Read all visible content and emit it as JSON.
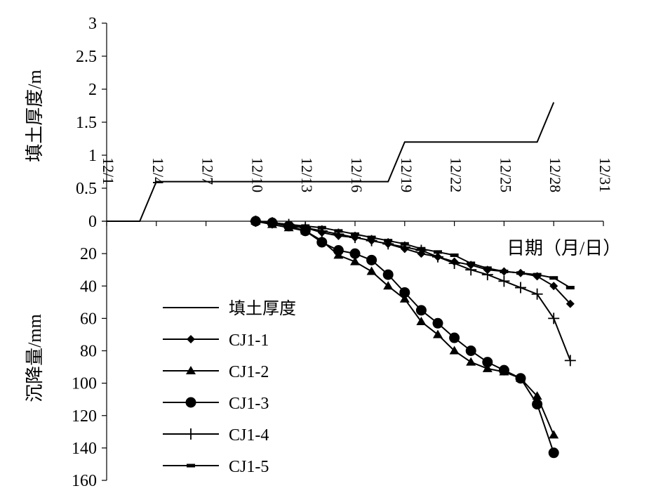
{
  "chart_data": {
    "type": "line",
    "title": "",
    "xlabel": "日期（月/日）",
    "x_ticks": [
      "12/1",
      "12/4",
      "12/7",
      "12/10",
      "12/13",
      "12/16",
      "12/19",
      "12/22",
      "12/25",
      "12/28",
      "12/31"
    ],
    "x_range_day": [
      1,
      31
    ],
    "upper_panel": {
      "ylabel": "填土厚度/m",
      "ylim": [
        0,
        3
      ],
      "y_ticks": [
        "0",
        "0.5",
        "1",
        "1.5",
        "2",
        "2.5",
        "3"
      ],
      "series": [
        {
          "name": "填土厚度",
          "marker": "none",
          "points": [
            [
              1,
              0
            ],
            [
              3,
              0
            ],
            [
              4,
              0.6
            ],
            [
              18,
              0.6
            ],
            [
              19,
              1.2
            ],
            [
              27,
              1.2
            ],
            [
              28,
              1.8
            ]
          ]
        }
      ]
    },
    "lower_panel": {
      "ylabel": "沉降量/mm",
      "ylim": [
        0,
        160
      ],
      "inverted": true,
      "y_ticks": [
        "0",
        "20",
        "40",
        "60",
        "80",
        "100",
        "120",
        "140",
        "160"
      ],
      "series": [
        {
          "name": "CJ1-1",
          "marker": "diamond",
          "points": [
            [
              10,
              0
            ],
            [
              11,
              1
            ],
            [
              12,
              3
            ],
            [
              13,
              4
            ],
            [
              14,
              7
            ],
            [
              15,
              9
            ],
            [
              16,
              10
            ],
            [
              17,
              12
            ],
            [
              18,
              14
            ],
            [
              19,
              17
            ],
            [
              20,
              20
            ],
            [
              21,
              22
            ],
            [
              22,
              25
            ],
            [
              23,
              27
            ],
            [
              24,
              30
            ],
            [
              25,
              31
            ],
            [
              26,
              32
            ],
            [
              27,
              34
            ],
            [
              28,
              40
            ],
            [
              29,
              51
            ]
          ]
        },
        {
          "name": "CJ1-2",
          "marker": "triangle",
          "points": [
            [
              10,
              0
            ],
            [
              11,
              2
            ],
            [
              12,
              4
            ],
            [
              13,
              6
            ],
            [
              14,
              12
            ],
            [
              15,
              21
            ],
            [
              16,
              25
            ],
            [
              17,
              31
            ],
            [
              18,
              40
            ],
            [
              19,
              48
            ],
            [
              20,
              62
            ],
            [
              21,
              70
            ],
            [
              22,
              80
            ],
            [
              23,
              87
            ],
            [
              24,
              91
            ],
            [
              25,
              93
            ],
            [
              26,
              97
            ],
            [
              27,
              108
            ],
            [
              28,
              132
            ]
          ]
        },
        {
          "name": "CJ1-3",
          "marker": "circle",
          "points": [
            [
              10,
              0
            ],
            [
              11,
              1
            ],
            [
              12,
              3
            ],
            [
              13,
              6
            ],
            [
              14,
              13
            ],
            [
              15,
              18
            ],
            [
              16,
              20
            ],
            [
              17,
              24
            ],
            [
              18,
              33
            ],
            [
              19,
              44
            ],
            [
              20,
              55
            ],
            [
              21,
              63
            ],
            [
              22,
              72
            ],
            [
              23,
              80
            ],
            [
              24,
              87
            ],
            [
              25,
              92
            ],
            [
              26,
              97
            ],
            [
              27,
              113
            ],
            [
              28,
              143
            ]
          ]
        },
        {
          "name": "CJ1-4",
          "marker": "plus",
          "points": [
            [
              10,
              0
            ],
            [
              11,
              1
            ],
            [
              12,
              2
            ],
            [
              13,
              4
            ],
            [
              14,
              6
            ],
            [
              15,
              8
            ],
            [
              16,
              10
            ],
            [
              17,
              12
            ],
            [
              18,
              14
            ],
            [
              19,
              16
            ],
            [
              20,
              18
            ],
            [
              21,
              22
            ],
            [
              22,
              26
            ],
            [
              23,
              30
            ],
            [
              24,
              33
            ],
            [
              25,
              37
            ],
            [
              26,
              41
            ],
            [
              27,
              45
            ],
            [
              28,
              60
            ],
            [
              29,
              86
            ]
          ]
        },
        {
          "name": "CJ1-5",
          "marker": "dash",
          "points": [
            [
              10,
              0
            ],
            [
              11,
              1
            ],
            [
              12,
              2
            ],
            [
              13,
              3
            ],
            [
              14,
              4
            ],
            [
              15,
              6
            ],
            [
              16,
              8
            ],
            [
              17,
              10
            ],
            [
              18,
              12
            ],
            [
              19,
              14
            ],
            [
              20,
              17
            ],
            [
              21,
              19
            ],
            [
              22,
              21
            ],
            [
              23,
              26
            ],
            [
              24,
              29
            ],
            [
              25,
              31
            ],
            [
              26,
              32
            ],
            [
              27,
              33
            ],
            [
              28,
              35
            ],
            [
              29,
              41
            ]
          ]
        }
      ]
    },
    "legend": {
      "placement": "lower-left",
      "entries": [
        "填土厚度",
        "CJ1-1",
        "CJ1-2",
        "CJ1-3",
        "CJ1-4",
        "CJ1-5"
      ]
    },
    "grid": false
  }
}
